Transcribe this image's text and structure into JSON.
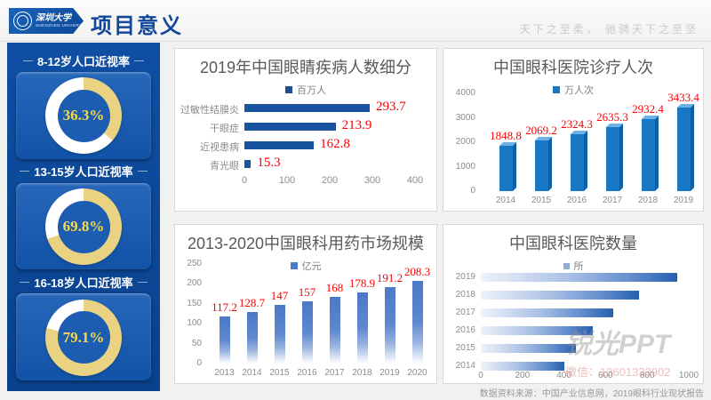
{
  "header": {
    "logo": {
      "university_cn": "深圳大学",
      "university_en": "SHENZHEN UNIVERSITY"
    },
    "title": "项目意义",
    "motto": "天下之至柔， 驰骋天下之至坚"
  },
  "sidebar": {
    "ring_color": "#e9d382",
    "ring_rest_color": "#ffffff",
    "gauges": [
      {
        "title": "8-12岁人口近视率",
        "value": "36.3%",
        "percent": 36.3
      },
      {
        "title": "13-15岁人口近视率",
        "value": "69.8%",
        "percent": 69.8
      },
      {
        "title": "16-18岁人口近视率",
        "value": "79.1%",
        "percent": 79.1
      }
    ]
  },
  "chart_data": [
    {
      "id": "eye-disease-breakdown",
      "type": "bar",
      "orientation": "horizontal",
      "title": "2019年中国眼睛疾病人数细分",
      "legend": "百万人",
      "swatch": "#1f4e8c",
      "categories": [
        "过敏性结膜炎",
        "干眼症",
        "近视患病",
        "青光眼"
      ],
      "values": [
        293.7,
        213.9,
        162.8,
        15.3
      ],
      "value_labels": [
        "293.7",
        "213.9",
        "162.8",
        "15.3"
      ],
      "xlim": [
        0,
        400
      ],
      "xticks": [
        0,
        100,
        200,
        300,
        400
      ],
      "bar_color": "#17539f",
      "value_label_color": "#ff0000",
      "grid": false,
      "legend_position": "top"
    },
    {
      "id": "eye-hospital-visits",
      "type": "bar",
      "orientation": "vertical",
      "style": "3d",
      "title": "中国眼科医院诊疗人次",
      "legend": "万人次",
      "swatch": "#1878c6",
      "categories": [
        "2014",
        "2015",
        "2016",
        "2017",
        "2018",
        "2019"
      ],
      "values": [
        1848.8,
        2069.2,
        2324.3,
        2635.3,
        2932.4,
        3433.4
      ],
      "value_labels": [
        "1848.8",
        "2069.2",
        "2324.3",
        "2635.3",
        "2932.4",
        "3433.4"
      ],
      "ylim": [
        0,
        4000
      ],
      "yticks": [
        0,
        1000,
        2000,
        3000,
        4000
      ],
      "bar_color": "#1878c6",
      "value_label_color": "#ff0000",
      "grid": false,
      "legend_position": "top"
    },
    {
      "id": "ophthalmic-drug-market",
      "type": "bar",
      "orientation": "vertical",
      "style": "gradient-fade-bottom",
      "title": "2013-2020中国眼科用药市场规模",
      "legend": "亿元",
      "swatch": "#4a79c7",
      "categories": [
        "2013",
        "2014",
        "2015",
        "2016",
        "2017",
        "2018",
        "2019",
        "2020"
      ],
      "values": [
        117.2,
        128.7,
        147,
        157,
        168,
        178.9,
        191.2,
        208.3
      ],
      "value_labels": [
        "117.2",
        "128.7",
        "147",
        "157",
        "168",
        "178.9",
        "191.2",
        "208.3"
      ],
      "ylim": [
        0,
        250
      ],
      "yticks": [
        0,
        50,
        100,
        150,
        200,
        250
      ],
      "bar_color": "#4a79c7",
      "value_label_color": "#ff0000",
      "grid": false,
      "legend_position": "top"
    },
    {
      "id": "eye-hospital-count",
      "type": "bar",
      "orientation": "horizontal",
      "style": "gradient-fade-left",
      "title": "中国眼科医院数量",
      "legend": "所",
      "swatch": "#8fadd6",
      "categories": [
        "2019",
        "2018",
        "2017",
        "2016",
        "2015",
        "2014"
      ],
      "values": [
        945,
        761,
        638,
        537,
        458,
        403
      ],
      "xlim": [
        0,
        1000
      ],
      "xticks": [
        0,
        200,
        400,
        600,
        800,
        1000
      ],
      "bar_color": "#275fb0",
      "grid": false,
      "legend_position": "top",
      "note": "values estimated from bar lengths; no data labels shown"
    }
  ],
  "watermark": {
    "brand": "锐光PPT",
    "wechat": "微信：13601333902"
  },
  "footer": {
    "source": "数据资料来源：中国产业信息网，2019眼科行业现状报告"
  }
}
